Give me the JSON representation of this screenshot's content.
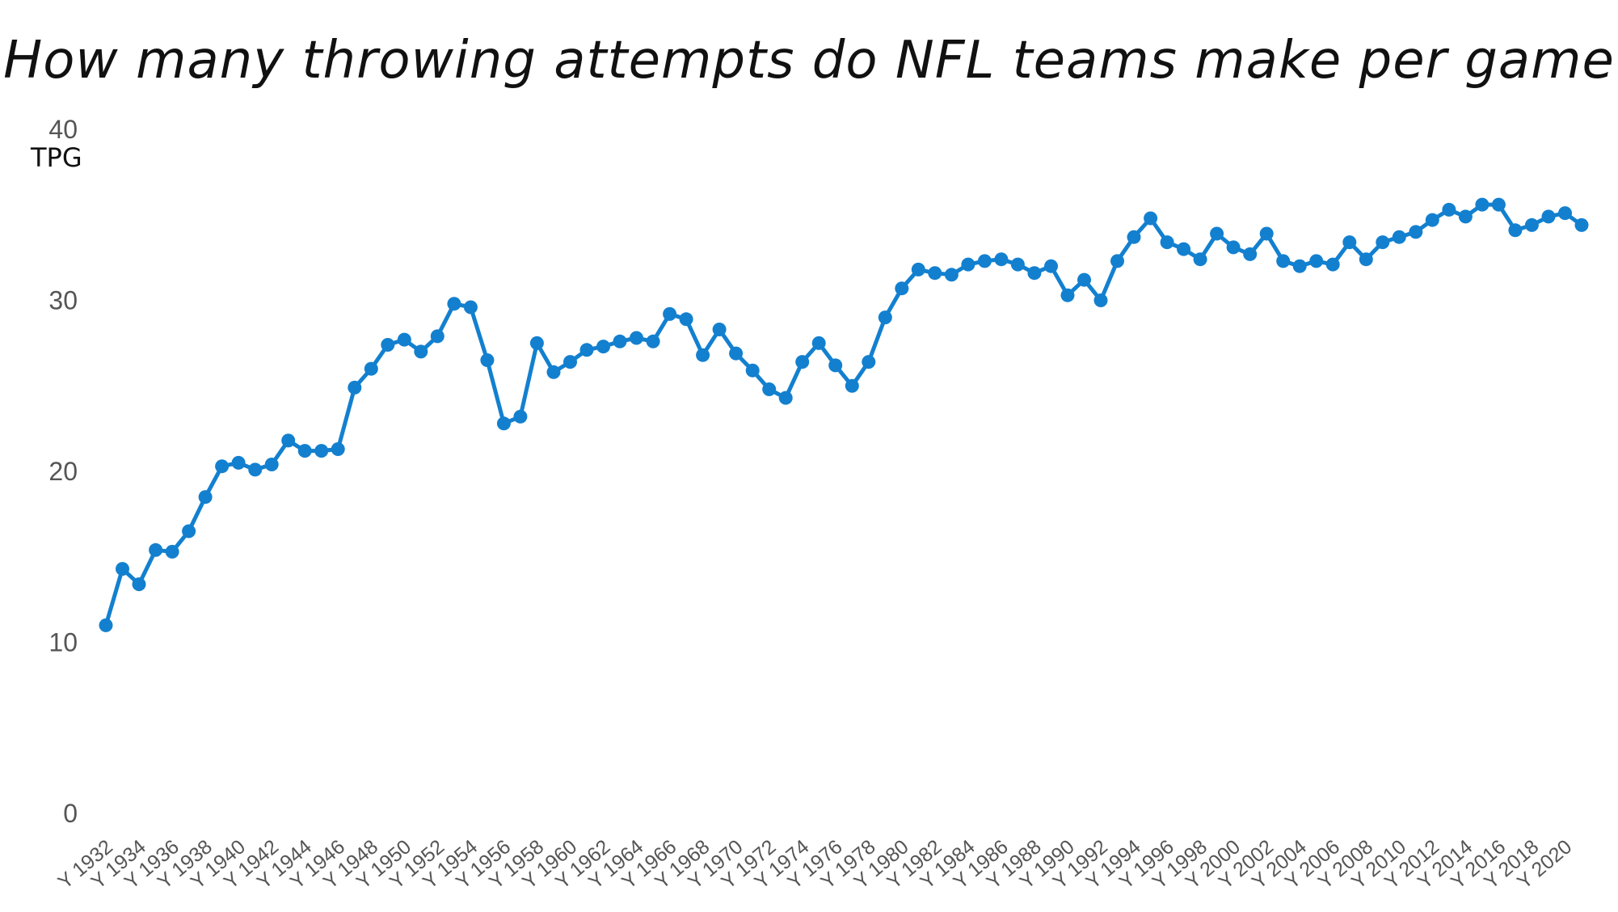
{
  "chart_data": {
    "type": "line",
    "title": "How many throwing attempts do NFL teams make per game",
    "ylabel": "TPG",
    "xlabel": "",
    "ylim": [
      0,
      40
    ],
    "yticks": [
      "0",
      "10",
      "20",
      "30",
      "40"
    ],
    "grid": false,
    "legend": "none",
    "line_color": "#1380CF",
    "x": [
      "Y 1932",
      "Y 1933",
      "Y 1934",
      "Y 1935",
      "Y 1936",
      "Y 1937",
      "Y 1938",
      "Y 1939",
      "Y 1940",
      "Y 1941",
      "Y 1942",
      "Y 1943",
      "Y 1944",
      "Y 1945",
      "Y 1946",
      "Y 1947",
      "Y 1948",
      "Y 1949",
      "Y 1950",
      "Y 1951",
      "Y 1952",
      "Y 1953",
      "Y 1954",
      "Y 1955",
      "Y 1956",
      "Y 1957",
      "Y 1958",
      "Y 1959",
      "Y 1960",
      "Y 1961",
      "Y 1962",
      "Y 1963",
      "Y 1964",
      "Y 1965",
      "Y 1966",
      "Y 1967",
      "Y 1968",
      "Y 1969",
      "Y 1970",
      "Y 1971",
      "Y 1972",
      "Y 1973",
      "Y 1974",
      "Y 1975",
      "Y 1976",
      "Y 1977",
      "Y 1978",
      "Y 1979",
      "Y 1980",
      "Y 1981",
      "Y 1982",
      "Y 1983",
      "Y 1984",
      "Y 1985",
      "Y 1986",
      "Y 1987",
      "Y 1988",
      "Y 1989",
      "Y 1990",
      "Y 1991",
      "Y 1992",
      "Y 1993",
      "Y 1994",
      "Y 1995",
      "Y 1996",
      "Y 1997",
      "Y 1998",
      "Y 1999",
      "Y 2000",
      "Y 2001",
      "Y 2002",
      "Y 2003",
      "Y 2004",
      "Y 2005",
      "Y 2006",
      "Y 2007",
      "Y 2008",
      "Y 2009",
      "Y 2010",
      "Y 2011",
      "Y 2012",
      "Y 2013",
      "Y 2014",
      "Y 2015",
      "Y 2016",
      "Y 2017",
      "Y 2018",
      "Y 2019",
      "Y 2020",
      "Y 2021"
    ],
    "x_tick_labels": [
      "Y 1932",
      "Y 1934",
      "Y 1936",
      "Y 1938",
      "Y 1940",
      "Y 1942",
      "Y 1944",
      "Y 1946",
      "Y 1948",
      "Y 1950",
      "Y 1952",
      "Y 1954",
      "Y 1956",
      "Y 1958",
      "Y 1960",
      "Y 1962",
      "Y 1964",
      "Y 1966",
      "Y 1968",
      "Y 1970",
      "Y 1972",
      "Y 1974",
      "Y 1976",
      "Y 1978",
      "Y 1980",
      "Y 1982",
      "Y 1984",
      "Y 1986",
      "Y 1988",
      "Y 1990",
      "Y 1992",
      "Y 1994",
      "Y 1996",
      "Y 1998",
      "Y 2000",
      "Y 2002",
      "Y 2004",
      "Y 2006",
      "Y 2008",
      "Y 2010",
      "Y 2012",
      "Y 2014",
      "Y 2016",
      "Y 2018",
      "Y 2020"
    ],
    "series": [
      {
        "values": [
          11.0,
          14.3,
          13.4,
          15.4,
          15.3,
          16.5,
          18.5,
          20.3,
          20.5,
          20.1,
          20.4,
          21.8,
          21.2,
          21.2,
          21.3,
          24.9,
          26.0,
          27.4,
          27.7,
          27.0,
          27.9,
          29.8,
          29.6,
          26.5,
          22.8,
          23.2,
          27.5,
          25.8,
          26.4,
          27.1,
          27.3,
          27.6,
          27.8,
          27.6,
          29.2,
          28.9,
          26.8,
          28.3,
          26.9,
          25.9,
          24.8,
          24.3,
          26.4,
          27.5,
          26.2,
          25.0,
          26.4,
          29.0,
          30.7,
          31.8,
          31.6,
          31.5,
          32.1,
          32.3,
          32.4,
          32.1,
          31.6,
          32.0,
          30.3,
          31.2,
          30.0,
          32.3,
          33.7,
          34.8,
          33.4,
          33.0,
          32.4,
          33.9,
          33.1,
          32.7,
          33.9,
          32.3,
          32.0,
          32.3,
          32.1,
          33.4,
          32.4,
          33.4,
          33.7,
          34.0,
          34.7,
          35.3,
          34.9,
          35.6,
          35.6,
          34.1,
          34.4,
          34.9,
          35.1,
          34.4
        ]
      }
    ]
  }
}
